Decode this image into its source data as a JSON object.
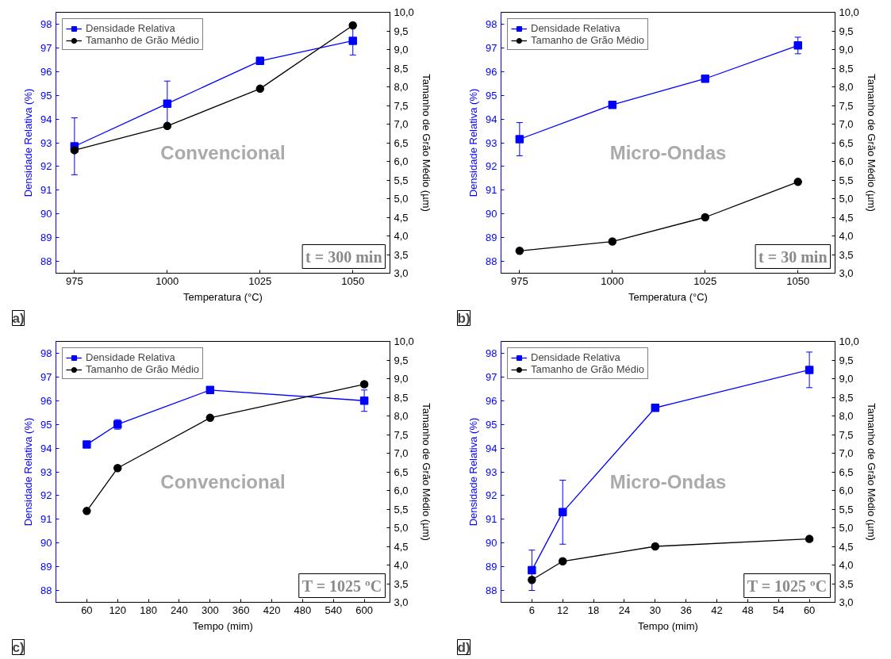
{
  "chart_data": [
    {
      "type": "line",
      "xlabel": "Temperatura (°C)",
      "ylabel": "Densidade Relativa (%)",
      "y2label": "Tamanho de Grão Médio (µm)",
      "x": [
        975,
        1000,
        1025,
        1050
      ],
      "xlim": [
        970,
        1060
      ],
      "xticks": [
        975,
        1000,
        1025,
        1050
      ],
      "ylim": [
        87.5,
        98.5
      ],
      "yticks": [
        88,
        89,
        90,
        91,
        92,
        93,
        94,
        95,
        96,
        97,
        98
      ],
      "y2lim": [
        3,
        10
      ],
      "y2ticks": [
        {
          "value": 3,
          "label": "3,0"
        },
        {
          "value": 3.5,
          "label": "3,5"
        },
        {
          "value": 4,
          "label": "4,0"
        },
        {
          "value": 4.5,
          "label": "4,5"
        },
        {
          "value": 5,
          "label": "5,0"
        },
        {
          "value": 5.5,
          "label": "5,5"
        },
        {
          "value": 6,
          "label": "6,0"
        },
        {
          "value": 6.5,
          "label": "6,5"
        },
        {
          "value": 7,
          "label": "7,0"
        },
        {
          "value": 7.5,
          "label": "7,5"
        },
        {
          "value": 8,
          "label": "8,0"
        },
        {
          "value": 8.5,
          "label": "8,5"
        },
        {
          "value": 9,
          "label": "9,0"
        },
        {
          "value": 9.5,
          "label": "9,5"
        },
        {
          "value": 10,
          "label": "10,0"
        }
      ],
      "grid": false,
      "legend": "top left",
      "line_style": "solid",
      "series": [
        {
          "name": "Densidade Relativa",
          "color": "#0000ff",
          "marker": "square",
          "values": [
            92.85,
            94.65,
            96.45,
            97.3
          ],
          "errors": [
            1.2,
            0.95,
            0.15,
            0.6
          ]
        },
        {
          "name": "Tamanho de Grão Médio",
          "color": "#000000",
          "marker": "circle",
          "axis": "y2",
          "values": [
            6.3,
            6.95,
            7.95,
            9.65
          ]
        }
      ],
      "annotations": [
        "Convencional",
        "t = 300 min",
        "a)"
      ]
    },
    {
      "type": "line",
      "xlabel": "Temperatura (°C)",
      "ylabel": "Densidade Relativa (%)",
      "y2label": "Tamanho de Grão Médio (µm)",
      "x": [
        975,
        1000,
        1025,
        1050
      ],
      "xlim": [
        970,
        1060
      ],
      "xticks": [
        975,
        1000,
        1025,
        1050
      ],
      "ylim": [
        87.5,
        98.5
      ],
      "yticks": [
        88,
        89,
        90,
        91,
        92,
        93,
        94,
        95,
        96,
        97,
        98
      ],
      "y2lim": [
        3,
        10
      ],
      "y2ticks": [
        {
          "value": 3,
          "label": "3,0"
        },
        {
          "value": 3.5,
          "label": "3,5"
        },
        {
          "value": 4,
          "label": "4,0"
        },
        {
          "value": 4.5,
          "label": "4,5"
        },
        {
          "value": 5,
          "label": "5,0"
        },
        {
          "value": 5.5,
          "label": "5,5"
        },
        {
          "value": 6,
          "label": "6,0"
        },
        {
          "value": 6.5,
          "label": "6,5"
        },
        {
          "value": 7,
          "label": "7,0"
        },
        {
          "value": 7.5,
          "label": "7,5"
        },
        {
          "value": 8,
          "label": "8,0"
        },
        {
          "value": 8.5,
          "label": "8,5"
        },
        {
          "value": 9,
          "label": "9,0"
        },
        {
          "value": 9.5,
          "label": "9,5"
        },
        {
          "value": 10,
          "label": "10,0"
        }
      ],
      "grid": false,
      "legend": "top left",
      "line_style": "solid",
      "series": [
        {
          "name": "Densidade Relativa",
          "color": "#0000ff",
          "marker": "square",
          "values": [
            93.15,
            94.6,
            95.7,
            97.1
          ],
          "errors": [
            0.7,
            0.1,
            0.1,
            0.35
          ]
        },
        {
          "name": "Tamanho de Grão Médio",
          "color": "#000000",
          "marker": "circle",
          "axis": "y2",
          "values": [
            3.6,
            3.85,
            4.5,
            5.45
          ]
        }
      ],
      "annotations": [
        "Micro-Ondas",
        "t = 30 min",
        "b)"
      ]
    },
    {
      "type": "line",
      "xlabel": "Tempo (mim)",
      "ylabel": "Densidade Relativa (%)",
      "y2label": "Tamanho de Grão Médio (µm)",
      "x": [
        60,
        120,
        300,
        600
      ],
      "xlim": [
        0,
        650
      ],
      "xticks": [
        60,
        120,
        180,
        240,
        300,
        360,
        420,
        480,
        540,
        600
      ],
      "ylim": [
        87.5,
        98.5
      ],
      "yticks": [
        88,
        89,
        90,
        91,
        92,
        93,
        94,
        95,
        96,
        97,
        98
      ],
      "y2lim": [
        3,
        10
      ],
      "y2ticks": [
        {
          "value": 3,
          "label": "3,0"
        },
        {
          "value": 3.5,
          "label": "3,5"
        },
        {
          "value": 4,
          "label": "4,0"
        },
        {
          "value": 4.5,
          "label": "4,5"
        },
        {
          "value": 5,
          "label": "5,0"
        },
        {
          "value": 5.5,
          "label": "5,5"
        },
        {
          "value": 6,
          "label": "6,0"
        },
        {
          "value": 6.5,
          "label": "6,5"
        },
        {
          "value": 7,
          "label": "7,0"
        },
        {
          "value": 7.5,
          "label": "7,5"
        },
        {
          "value": 8,
          "label": "8,0"
        },
        {
          "value": 8.5,
          "label": "8,5"
        },
        {
          "value": 9,
          "label": "9,0"
        },
        {
          "value": 9.5,
          "label": "9,5"
        },
        {
          "value": 10,
          "label": "10,0"
        }
      ],
      "grid": false,
      "legend": "top left",
      "line_style": "solid",
      "series": [
        {
          "name": "Densidade Relativa",
          "color": "#0000ff",
          "marker": "square",
          "values": [
            94.15,
            95.0,
            96.45,
            96.0
          ],
          "errors": [
            0.05,
            0.2,
            0.1,
            0.45
          ]
        },
        {
          "name": "Tamanho de Grão Médio",
          "color": "#000000",
          "marker": "circle",
          "axis": "y2",
          "values": [
            5.45,
            6.6,
            7.95,
            8.85
          ]
        }
      ],
      "annotations": [
        "Convencional",
        "T = 1025 ºC",
        "c)"
      ]
    },
    {
      "type": "line",
      "xlabel": "Tempo (mim)",
      "ylabel": "Densidade Relativa (%)",
      "y2label": "Tamanho de Grão Médio (µm)",
      "x": [
        6,
        12,
        30,
        60
      ],
      "xlim": [
        0,
        65
      ],
      "xticks": [
        6,
        12,
        18,
        24,
        30,
        36,
        42,
        48,
        54,
        60
      ],
      "ylim": [
        87.5,
        98.5
      ],
      "yticks": [
        88,
        89,
        90,
        91,
        92,
        93,
        94,
        95,
        96,
        97,
        98
      ],
      "y2lim": [
        3,
        10
      ],
      "y2ticks": [
        {
          "value": 3,
          "label": "3,0"
        },
        {
          "value": 3.5,
          "label": "3,5"
        },
        {
          "value": 4,
          "label": "4,0"
        },
        {
          "value": 4.5,
          "label": "4,5"
        },
        {
          "value": 5,
          "label": "5,0"
        },
        {
          "value": 5.5,
          "label": "5,5"
        },
        {
          "value": 6,
          "label": "6,0"
        },
        {
          "value": 6.5,
          "label": "6,5"
        },
        {
          "value": 7,
          "label": "7,0"
        },
        {
          "value": 7.5,
          "label": "7,5"
        },
        {
          "value": 8,
          "label": "8,0"
        },
        {
          "value": 8.5,
          "label": "8,5"
        },
        {
          "value": 9,
          "label": "9,0"
        },
        {
          "value": 9.5,
          "label": "9,5"
        },
        {
          "value": 10,
          "label": "10,0"
        }
      ],
      "grid": false,
      "legend": "top left",
      "line_style": "solid",
      "series": [
        {
          "name": "Densidade Relativa",
          "color": "#0000ff",
          "marker": "square",
          "values": [
            88.85,
            91.3,
            95.7,
            97.3
          ],
          "errors": [
            0.85,
            1.35,
            0.1,
            0.75
          ]
        },
        {
          "name": "Tamanho de Grão Médio",
          "color": "#000000",
          "marker": "circle",
          "axis": "y2",
          "values": [
            3.6,
            4.1,
            4.5,
            4.7
          ]
        }
      ],
      "annotations": [
        "Micro-Ondas",
        "T = 1025 ºC",
        "d)"
      ]
    }
  ]
}
